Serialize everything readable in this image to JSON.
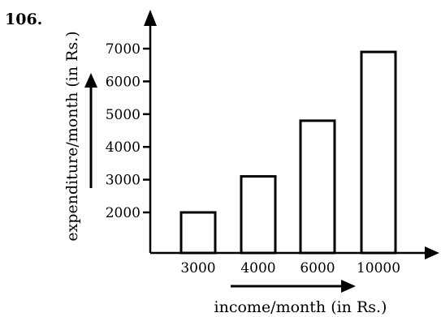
{
  "question_number": "106.",
  "chart_data": {
    "type": "bar",
    "categories": [
      "3000",
      "4000",
      "6000",
      "10000"
    ],
    "values": [
      2000,
      3100,
      4800,
      6900
    ],
    "xlabel": "income/month (in Rs.)",
    "ylabel": "expenditure/month (in Rs.)",
    "yticks": [
      2000,
      3000,
      4000,
      5000,
      6000,
      7000
    ],
    "ytick_labels": [
      "2000",
      "3000",
      "4000",
      "5000",
      "6000",
      "7000"
    ],
    "grid": false,
    "legend": "none"
  }
}
